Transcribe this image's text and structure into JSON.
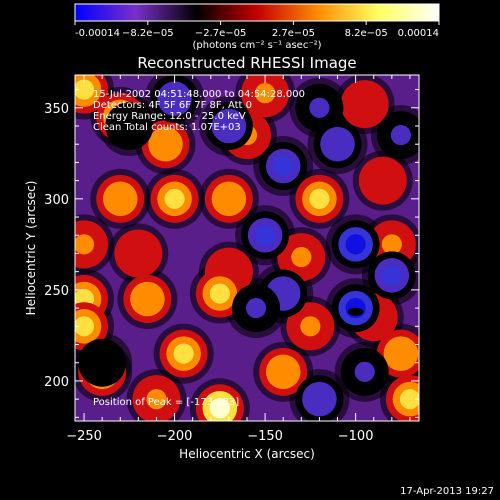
{
  "chart_data": {
    "type": "heatmap",
    "title": "Reconstructed RHESSI Image",
    "xlabel": "Heliocentric X (arcsec)",
    "ylabel": "Heliocentric Y (arcsec)",
    "xlim": [
      -255,
      -65
    ],
    "ylim": [
      178,
      368
    ],
    "x_ticks": [
      -250,
      -200,
      -150,
      -100
    ],
    "y_ticks": [
      200,
      250,
      300,
      350
    ],
    "colorbar": {
      "label": "(photons cm⁻² s⁻¹ asec⁻²)",
      "min": -0.00014,
      "max": 0.00014,
      "tick_labels": [
        "-0.00014",
        "−8.2e−05",
        "−2.7e−05",
        "2.7e−05",
        "8.2e−05",
        "0.00014"
      ],
      "colors": [
        "#0000ff",
        "#7a30c8",
        "#000000",
        "#c40000",
        "#ff8c00",
        "#ffff60",
        "#ffffff"
      ]
    },
    "annotations": [
      "15-Jul-2002 04:51:48.000 to 04:54:28.000",
      "Detectors: 4F 5F 6F 7F 8F, Att 0",
      "Energy Range: 12.0 - 25.0 keV",
      "Clean    Total counts: 1.07E+03",
      "Position of Peak = [-173,183]"
    ],
    "peak": [
      -173,
      183
    ],
    "blobs": [
      {
        "x": -250,
        "y": 360,
        "v": 0.9
      },
      {
        "x": -230,
        "y": 345,
        "v": 0.8
      },
      {
        "x": -150,
        "y": 358,
        "v": 0.6
      },
      {
        "x": -95,
        "y": 352,
        "v": 0.5
      },
      {
        "x": -205,
        "y": 330,
        "v": 0.7
      },
      {
        "x": -160,
        "y": 335,
        "v": 0.6
      },
      {
        "x": -85,
        "y": 310,
        "v": 0.5
      },
      {
        "x": -230,
        "y": 300,
        "v": 0.7
      },
      {
        "x": -200,
        "y": 300,
        "v": 0.9
      },
      {
        "x": -170,
        "y": 300,
        "v": 0.7
      },
      {
        "x": -120,
        "y": 300,
        "v": 0.8
      },
      {
        "x": -250,
        "y": 275,
        "v": 0.6
      },
      {
        "x": -220,
        "y": 270,
        "v": 0.5
      },
      {
        "x": -170,
        "y": 260,
        "v": 0.5
      },
      {
        "x": -130,
        "y": 268,
        "v": 0.6
      },
      {
        "x": -80,
        "y": 275,
        "v": 0.6
      },
      {
        "x": -175,
        "y": 248,
        "v": 0.9
      },
      {
        "x": -215,
        "y": 245,
        "v": 0.7
      },
      {
        "x": -250,
        "y": 245,
        "v": 0.8
      },
      {
        "x": -250,
        "y": 230,
        "v": 0.9
      },
      {
        "x": -240,
        "y": 205,
        "v": 0.7
      },
      {
        "x": -195,
        "y": 215,
        "v": 0.9
      },
      {
        "x": -175,
        "y": 185,
        "v": 1.0
      },
      {
        "x": -140,
        "y": 205,
        "v": 0.7
      },
      {
        "x": -125,
        "y": 230,
        "v": 0.6
      },
      {
        "x": -75,
        "y": 215,
        "v": 0.7
      },
      {
        "x": -70,
        "y": 190,
        "v": 0.8
      },
      {
        "x": -210,
        "y": 190,
        "v": 0.6
      },
      {
        "x": -90,
        "y": 235,
        "v": 0.5
      },
      {
        "x": -200,
        "y": 355,
        "v": -0.5
      },
      {
        "x": -170,
        "y": 340,
        "v": -0.5
      },
      {
        "x": -120,
        "y": 350,
        "v": -0.4
      },
      {
        "x": -110,
        "y": 330,
        "v": -0.5
      },
      {
        "x": -75,
        "y": 335,
        "v": -0.4
      },
      {
        "x": -140,
        "y": 318,
        "v": -0.6
      },
      {
        "x": -100,
        "y": 275,
        "v": -0.9
      },
      {
        "x": -100,
        "y": 240,
        "v": -1.0
      },
      {
        "x": -80,
        "y": 258,
        "v": -0.6
      },
      {
        "x": -150,
        "y": 280,
        "v": -0.6
      },
      {
        "x": -140,
        "y": 248,
        "v": -0.5
      },
      {
        "x": -120,
        "y": 190,
        "v": -0.5
      },
      {
        "x": -95,
        "y": 205,
        "v": -0.4
      },
      {
        "x": -225,
        "y": 340,
        "v": -0.3
      },
      {
        "x": -240,
        "y": 210,
        "v": -0.3
      },
      {
        "x": -155,
        "y": 240,
        "v": -0.4
      }
    ]
  },
  "footer": {
    "timestamp": "17-Apr-2013 19:27"
  }
}
